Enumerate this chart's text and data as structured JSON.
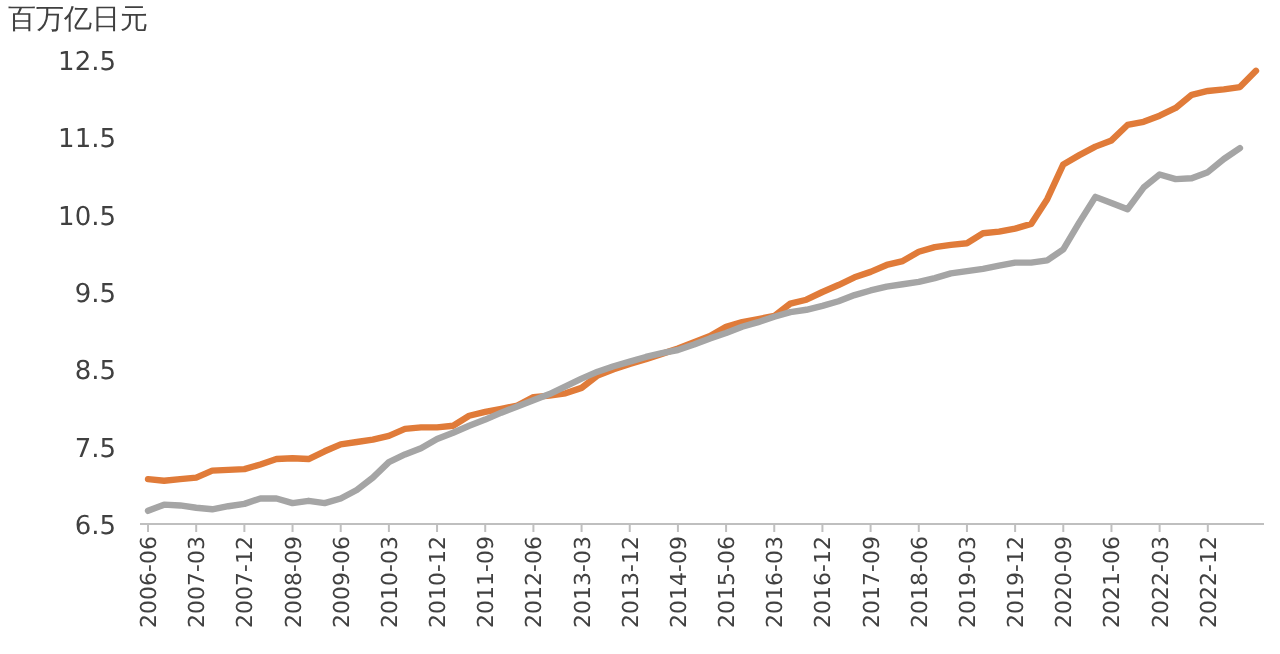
{
  "chart_data": {
    "type": "line",
    "ylabel": "百万亿日元",
    "categories": [
      "2006-06",
      null,
      null,
      "2007-03",
      null,
      null,
      "2007-12",
      null,
      null,
      "2008-09",
      null,
      null,
      "2009-06",
      null,
      null,
      "2010-03",
      null,
      null,
      "2010-12",
      null,
      null,
      "2011-09",
      null,
      null,
      "2012-06",
      null,
      null,
      "2013-03",
      null,
      null,
      "2013-12",
      null,
      null,
      "2014-09",
      null,
      null,
      "2015-06",
      null,
      null,
      "2016-03",
      null,
      null,
      "2016-12",
      null,
      null,
      "2017-09",
      null,
      null,
      "2018-06",
      null,
      null,
      "2019-03",
      null,
      null,
      "2019-12",
      null,
      null,
      "2020-09",
      null,
      null,
      "2021-06",
      null,
      null,
      "2022-03",
      null,
      null,
      "2022-12",
      null,
      null,
      null
    ],
    "series": [
      {
        "color": "#e07b39",
        "values": [
          7.08,
          7.06,
          7.08,
          7.1,
          7.19,
          7.2,
          7.21,
          7.27,
          7.34,
          7.35,
          7.34,
          7.44,
          7.53,
          7.56,
          7.59,
          7.64,
          7.73,
          7.75,
          7.75,
          7.77,
          7.9,
          7.95,
          7.99,
          8.03,
          8.14,
          8.16,
          8.19,
          8.26,
          8.42,
          8.5,
          8.57,
          8.63,
          8.7,
          8.77,
          8.85,
          8.93,
          9.05,
          9.11,
          9.15,
          9.19,
          9.35,
          9.4,
          9.5,
          9.59,
          9.69,
          9.76,
          9.85,
          9.9,
          10.02,
          10.08,
          10.11,
          10.13,
          10.26,
          10.28,
          10.32,
          10.38,
          10.7,
          11.15,
          11.27,
          11.38,
          11.46,
          11.66,
          11.7,
          11.78,
          11.88,
          12.05,
          12.1,
          12.12,
          12.15,
          12.36
        ]
      },
      {
        "color": "#a5a5a5",
        "values": [
          6.67,
          6.75,
          6.74,
          6.71,
          6.69,
          6.73,
          6.76,
          6.83,
          6.83,
          6.77,
          6.8,
          6.77,
          6.83,
          6.94,
          7.1,
          7.3,
          7.4,
          7.48,
          7.6,
          7.68,
          7.77,
          7.85,
          7.94,
          8.02,
          8.1,
          8.18,
          8.28,
          8.38,
          8.47,
          8.54,
          8.6,
          8.66,
          8.71,
          8.75,
          8.82,
          8.9,
          8.97,
          9.05,
          9.11,
          9.18,
          9.24,
          9.27,
          9.32,
          9.38,
          9.46,
          9.52,
          9.57,
          9.6,
          9.63,
          9.68,
          9.74,
          9.77,
          9.8,
          9.84,
          9.88,
          9.88,
          9.91,
          10.05,
          10.4,
          10.73,
          10.65,
          10.57,
          10.85,
          11.02,
          10.96,
          10.97,
          11.05,
          11.22,
          11.36,
          null
        ]
      }
    ],
    "ylim": [
      6.5,
      12.5
    ],
    "yticks": [
      6.5,
      7.5,
      8.5,
      9.5,
      10.5,
      11.5,
      12.5
    ],
    "grid": false,
    "marker": "none",
    "line_style": "solid"
  }
}
